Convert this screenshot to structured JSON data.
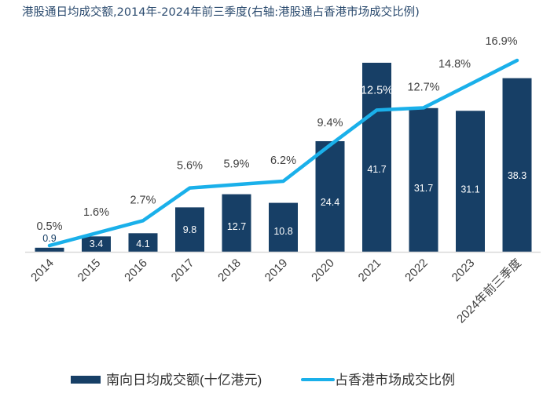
{
  "chart_data": {
    "type": "bar",
    "title": "港股通日均成交额,2014年-2024年前三季度(右轴:港股通占香港市场成交比例)",
    "categories": [
      "2014",
      "2015",
      "2016",
      "2017",
      "2018",
      "2019",
      "2020",
      "2021",
      "2022",
      "2023",
      "2024年前三季度"
    ],
    "series": [
      {
        "name": "南向日均成交额(十亿港元)",
        "kind": "bar",
        "color": "#173f66",
        "values": [
          0.9,
          3.4,
          4.1,
          9.8,
          12.7,
          10.8,
          24.4,
          41.7,
          31.7,
          31.1,
          38.3
        ],
        "labels": [
          "0.9",
          "3.4",
          "4.1",
          "9.8",
          "12.7",
          "10.8",
          "24.4",
          "41.7",
          "31.7",
          "31.1",
          "38.3"
        ]
      },
      {
        "name": "占香港市场成交比例",
        "kind": "line",
        "axis": "right",
        "color": "#1ab0ea",
        "values": [
          0.5,
          1.6,
          2.7,
          5.6,
          5.9,
          6.2,
          9.4,
          12.5,
          12.7,
          14.8,
          16.9
        ],
        "labels": [
          "0.5%",
          "1.6%",
          "2.7%",
          "5.6%",
          "5.9%",
          "6.2%",
          "9.4%",
          "12.5%",
          "12.7%",
          "14.8%",
          "16.9%"
        ]
      }
    ],
    "xlabel": "",
    "ylabel": "",
    "ylim": [
      0,
      42
    ],
    "y2lim": [
      0,
      17
    ],
    "grid": false,
    "axes_visible": false,
    "legend_position": "bottom"
  }
}
